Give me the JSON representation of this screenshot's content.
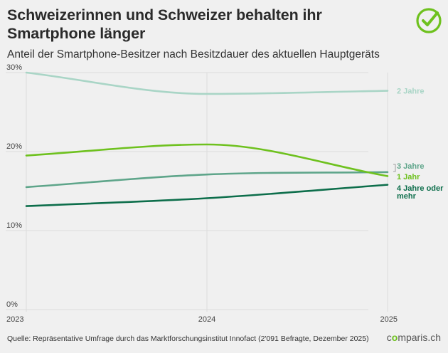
{
  "header": {
    "title": "Schweizerinnen und Schweizer behalten ihr Smartphone länger",
    "subtitle": "Anteil der Smartphone-Besitzer nach Besitzdauer des aktuellen Hauptgeräts"
  },
  "footer": {
    "source": "Quelle: Repräsentative Umfrage durch das Marktforschungsinstitut Innofact (2'091 Befragte, Dezember 2025)",
    "brand_prefix": "c",
    "brand_o": "o",
    "brand_suffix": "mparis.ch"
  },
  "colors": {
    "brand_green": "#6ec11e",
    "series_2_jahre": "#a9d5c6",
    "series_3_jahre": "#5ea58a",
    "series_1_jahr": "#6ec11e",
    "series_4_jahre": "#0d6e4b"
  },
  "chart_data": {
    "type": "line",
    "x": [
      2023,
      2024,
      2025
    ],
    "x_tick_labels": [
      "2023",
      "2024",
      "2025"
    ],
    "y_ticks": [
      0,
      10,
      20,
      30
    ],
    "y_tick_labels": [
      "0%",
      "10%",
      "20%",
      "30%"
    ],
    "ylim": [
      0,
      30
    ],
    "grid": true,
    "series": [
      {
        "name": "2 Jahre",
        "values": [
          30.0,
          27.3,
          27.7
        ],
        "color": "#a9d5c6"
      },
      {
        "name": "3 Jahre",
        "values": [
          15.5,
          17.1,
          17.4
        ],
        "color": "#5ea58a"
      },
      {
        "name": "1 Jahr",
        "values": [
          19.5,
          20.9,
          16.9
        ],
        "color": "#6ec11e"
      },
      {
        "name": "4 Jahre oder mehr",
        "values": [
          13.1,
          14.1,
          15.8
        ],
        "color": "#0d6e4b"
      }
    ]
  }
}
